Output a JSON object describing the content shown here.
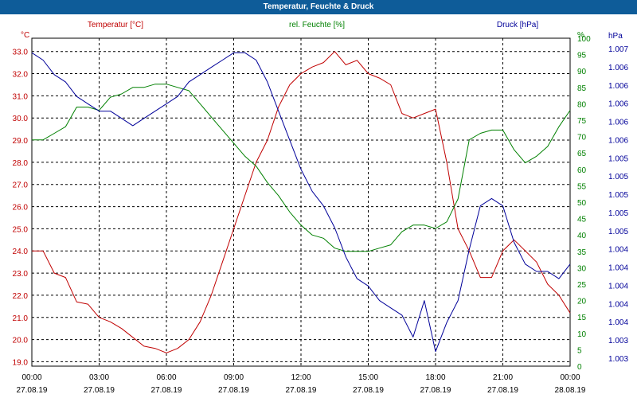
{
  "window": {
    "title": "Temperatur, Feuchte & Druck"
  },
  "chart_data": {
    "type": "line",
    "title": "Temperatur, Feuchte & Druck",
    "grid": true,
    "x_ticks": [
      {
        "time": "00:00",
        "date": "27.08.19"
      },
      {
        "time": "03:00",
        "date": "27.08.19"
      },
      {
        "time": "06:00",
        "date": "27.08.19"
      },
      {
        "time": "09:00",
        "date": "27.08.19"
      },
      {
        "time": "12:00",
        "date": "27.08.19"
      },
      {
        "time": "15:00",
        "date": "27.08.19"
      },
      {
        "time": "18:00",
        "date": "27.08.19"
      },
      {
        "time": "21:00",
        "date": "27.08.19"
      },
      {
        "time": "00:00",
        "date": "28.08.19"
      }
    ],
    "axes": {
      "temperature": {
        "label": "Temperatur [°C]",
        "unit": "°C",
        "color": "#c00000",
        "range": [
          18.8,
          33.6
        ],
        "ticks": [
          "19.0",
          "20.0",
          "21.0",
          "22.0",
          "23.0",
          "24.0",
          "25.0",
          "26.0",
          "27.0",
          "28.0",
          "29.0",
          "30.0",
          "31.0",
          "32.0",
          "33.0"
        ]
      },
      "humidity": {
        "label": "rel. Feuchte [%]",
        "unit": "%",
        "color": "#008000",
        "range": [
          0,
          100
        ],
        "ticks": [
          "0",
          "5",
          "10",
          "15",
          "20",
          "25",
          "30",
          "35",
          "40",
          "45",
          "50",
          "55",
          "60",
          "65",
          "70",
          "75",
          "80",
          "85",
          "90",
          "95",
          "100"
        ]
      },
      "pressure": {
        "label": "Druck [hPa]",
        "unit": "hPa",
        "color": "#000099",
        "range": [
          1002.7,
          1007.2
        ],
        "ticks": [
          "1.003",
          "1.003",
          "1.004",
          "1.004",
          "1.004",
          "1.004",
          "1.004",
          "1.005",
          "1.005",
          "1.005",
          "1.005",
          "1.005",
          "1.006",
          "1.006",
          "1.006",
          "1.006",
          "1.006",
          "1.007"
        ]
      }
    },
    "series": [
      {
        "name": "Temperatur [°C]",
        "axis": "temperature",
        "color": "#c00000",
        "x": [
          0,
          0.5,
          1.0,
          1.5,
          2.0,
          2.5,
          3.0,
          3.5,
          4.0,
          4.5,
          5.0,
          5.5,
          6.0,
          6.5,
          7.0,
          7.5,
          8.0,
          8.5,
          9.0,
          9.5,
          10.0,
          10.5,
          11.0,
          11.5,
          12.0,
          12.5,
          13.0,
          13.5,
          14.0,
          14.5,
          15.0,
          15.5,
          16.0,
          16.5,
          17.0,
          17.5,
          18.0,
          18.5,
          19.0,
          19.5,
          20.0,
          20.5,
          21.0,
          21.5,
          22.0,
          22.5,
          23.0,
          23.5,
          24.0
        ],
        "values": [
          24.0,
          24.0,
          23.0,
          22.8,
          21.7,
          21.6,
          21.0,
          20.8,
          20.5,
          20.1,
          19.7,
          19.6,
          19.4,
          19.6,
          20.0,
          20.8,
          22.0,
          23.5,
          25.0,
          26.5,
          28.0,
          29.0,
          30.5,
          31.5,
          32.0,
          32.3,
          32.5,
          33.0,
          32.4,
          32.6,
          32.0,
          31.8,
          31.5,
          30.2,
          30.0,
          30.2,
          30.4,
          28.0,
          25.0,
          24.0,
          22.8,
          22.8,
          24.0,
          24.5,
          24.0,
          23.5,
          22.5,
          22.0,
          21.2
        ]
      },
      {
        "name": "rel. Feuchte [%]",
        "axis": "humidity",
        "color": "#008000",
        "x": [
          0,
          0.5,
          1.0,
          1.5,
          2.0,
          2.5,
          3.0,
          3.5,
          4.0,
          4.5,
          5.0,
          5.5,
          6.0,
          6.5,
          7.0,
          7.5,
          8.0,
          8.5,
          9.0,
          9.5,
          10.0,
          10.5,
          11.0,
          11.5,
          12.0,
          12.5,
          13.0,
          13.5,
          14.0,
          14.5,
          15.0,
          15.5,
          16.0,
          16.5,
          17.0,
          17.5,
          18.0,
          18.5,
          19.0,
          19.5,
          20.0,
          20.5,
          21.0,
          21.5,
          22.0,
          22.5,
          23.0,
          23.5,
          24.0
        ],
        "values": [
          69,
          69,
          71,
          73,
          79,
          79,
          78,
          82,
          83,
          85,
          85,
          86,
          86,
          85,
          84,
          80,
          76,
          72,
          68,
          64,
          61,
          56,
          52,
          47,
          43,
          40,
          39,
          36,
          35,
          35,
          35,
          36,
          37,
          41,
          43,
          43,
          42,
          44,
          51,
          69,
          71,
          72,
          72,
          66,
          62,
          64,
          67,
          73,
          78
        ]
      },
      {
        "name": "Druck [hPa]",
        "axis": "pressure",
        "color": "#000099",
        "x": [
          0,
          0.5,
          1.0,
          1.5,
          2.0,
          2.5,
          3.0,
          3.5,
          4.0,
          4.5,
          5.0,
          5.5,
          6.0,
          6.5,
          7.0,
          7.5,
          8.0,
          8.5,
          9.0,
          9.5,
          10.0,
          10.5,
          11.0,
          11.5,
          12.0,
          12.5,
          13.0,
          13.5,
          14.0,
          14.5,
          15.0,
          15.5,
          16.0,
          16.5,
          17.0,
          17.5,
          18.0,
          18.5,
          19.0,
          19.5,
          20.0,
          20.5,
          21.0,
          21.5,
          22.0,
          22.5,
          23.0,
          23.5,
          24.0
        ],
        "values": [
          1007.0,
          1006.9,
          1006.7,
          1006.6,
          1006.4,
          1006.3,
          1006.2,
          1006.2,
          1006.1,
          1006.0,
          1006.1,
          1006.2,
          1006.3,
          1006.4,
          1006.6,
          1006.7,
          1006.8,
          1006.9,
          1007.0,
          1007.0,
          1006.9,
          1006.6,
          1006.2,
          1005.8,
          1005.4,
          1005.1,
          1004.9,
          1004.6,
          1004.2,
          1003.9,
          1003.8,
          1003.6,
          1003.5,
          1003.4,
          1003.1,
          1003.6,
          1002.9,
          1003.3,
          1003.6,
          1004.3,
          1004.9,
          1005.0,
          1004.9,
          1004.4,
          1004.1,
          1004.0,
          1004.0,
          1003.9,
          1004.1
        ]
      }
    ]
  }
}
